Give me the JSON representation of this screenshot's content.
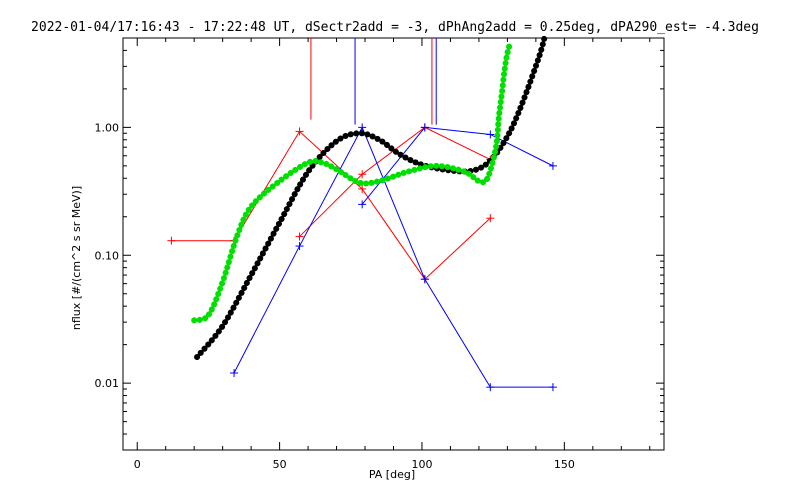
{
  "chart_data": {
    "type": "line",
    "title": "2022-01-04/17:16:43 - 17:22:48 UT, dSectr2add = -3, dPhAng2add = 0.25deg, dPA290_est=  -4.3deg",
    "xlabel": "PA [deg]",
    "ylabel": "nflux [#/(cm^2 s sr MeV)]",
    "xlim": [
      -5,
      185
    ],
    "ylim": [
      0.003,
      5.0
    ],
    "yscale": "log",
    "x_ticks": [
      0,
      50,
      100,
      150
    ],
    "x_tick_labels": [
      "0",
      "50",
      "100",
      "150"
    ],
    "y_ticks": [
      0.01,
      0.1,
      1.0
    ],
    "y_tick_labels": [
      "0.01",
      "0.10",
      "1.00"
    ],
    "grid": false,
    "legend": "none",
    "series": [
      {
        "style": "red-line-plus",
        "color": "#ff0000",
        "x": [
          12,
          34,
          57,
          79,
          101,
          124
        ],
        "y": [
          0.13,
          0.13,
          0.93,
          0.33,
          0.065,
          0.195
        ]
      },
      {
        "style": "red-line-plus",
        "color": "#ff0000",
        "x": [
          57,
          79,
          101,
          124
        ],
        "y": [
          0.14,
          0.43,
          1.0,
          0.56
        ]
      },
      {
        "style": "blue-line-plus",
        "color": "#0000ff",
        "x": [
          34,
          57,
          79,
          101,
          124,
          146
        ],
        "y": [
          0.012,
          0.118,
          1.0,
          0.065,
          0.0093,
          0.0093
        ]
      },
      {
        "style": "blue-line-plus",
        "color": "#0000ff",
        "x": [
          79,
          101,
          124,
          146
        ],
        "y": [
          0.25,
          1.0,
          0.88,
          0.5
        ]
      },
      {
        "style": "black-thick-dotted",
        "color": "#000000",
        "x": [
          21,
          30,
          40,
          50,
          60,
          70,
          78,
          85,
          92,
          100,
          110,
          118,
          124,
          130,
          135,
          141,
          143
        ],
        "y": [
          0.016,
          0.028,
          0.07,
          0.18,
          0.45,
          0.78,
          0.9,
          0.8,
          0.62,
          0.51,
          0.46,
          0.46,
          0.55,
          0.85,
          1.5,
          3.5,
          5.0
        ]
      },
      {
        "style": "green-thick-dotted",
        "color": "#00e000",
        "x": [
          20,
          25,
          30,
          35,
          40,
          50,
          60,
          65,
          70,
          78,
          85,
          95,
          105,
          115,
          120,
          123,
          126,
          127,
          128,
          129,
          130,
          131
        ],
        "y": [
          0.031,
          0.034,
          0.062,
          0.14,
          0.24,
          0.38,
          0.53,
          0.53,
          0.47,
          0.37,
          0.38,
          0.45,
          0.5,
          0.45,
          0.38,
          0.4,
          0.7,
          1.2,
          1.8,
          2.8,
          3.8,
          4.6
        ]
      }
    ],
    "vertical_markers": [
      {
        "color": "#ff0000",
        "x": 61,
        "y_from": 1.15,
        "y_to": 5.0
      },
      {
        "color": "#0000ff",
        "x": 76.5,
        "y_from": 1.05,
        "y_to": 5.0
      },
      {
        "color": "#ff0000",
        "x": 103.5,
        "y_from": 1.05,
        "y_to": 5.0
      },
      {
        "color": "#0000ff",
        "x": 105,
        "y_from": 1.05,
        "y_to": 5.0
      }
    ]
  }
}
